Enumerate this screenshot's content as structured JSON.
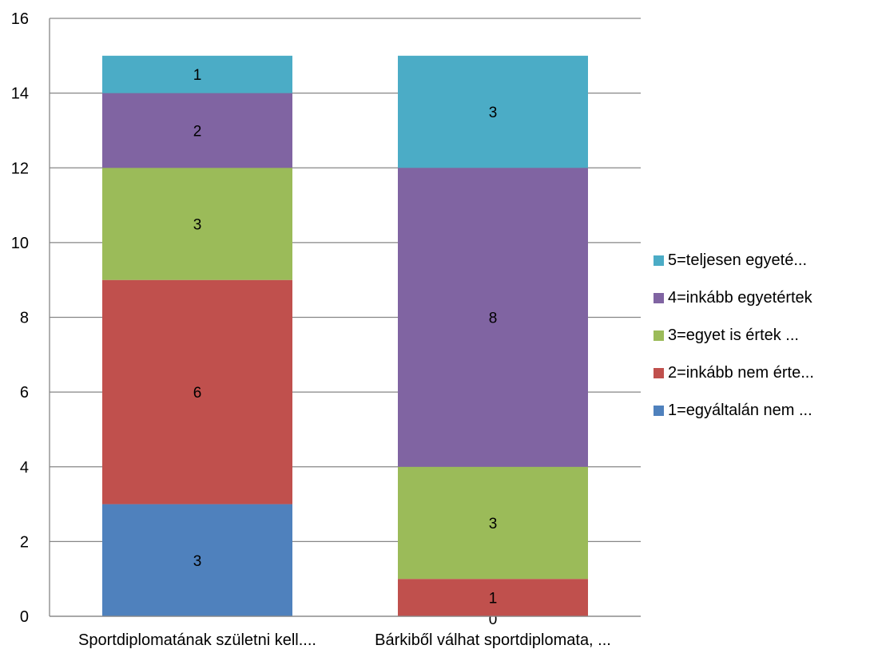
{
  "chart_data": {
    "type": "bar",
    "stacked": true,
    "categories": [
      "Sportdiplomatának születni kell....",
      "Bárkiből válhat sportdiplomata, ..."
    ],
    "series": [
      {
        "name": "1=egyáltalán nem ...",
        "color": "#4F81BD",
        "values": [
          3,
          0
        ]
      },
      {
        "name": "2=inkább nem érte...",
        "color": "#C0504D",
        "values": [
          6,
          1
        ]
      },
      {
        "name": "3=egyet is értek ...",
        "color": "#9BBB59",
        "values": [
          3,
          3
        ]
      },
      {
        "name": "4=inkább egyetértek",
        "color": "#8064A2",
        "values": [
          2,
          8
        ]
      },
      {
        "name": "5=teljesen egyeté...",
        "color": "#4BACC6",
        "values": [
          1,
          3
        ]
      }
    ],
    "ylim": [
      0,
      16
    ],
    "yticks": [
      0,
      2,
      4,
      6,
      8,
      10,
      12,
      14,
      16
    ],
    "grid": true,
    "legend_position": "right",
    "title": "",
    "xlabel": "",
    "ylabel": ""
  }
}
